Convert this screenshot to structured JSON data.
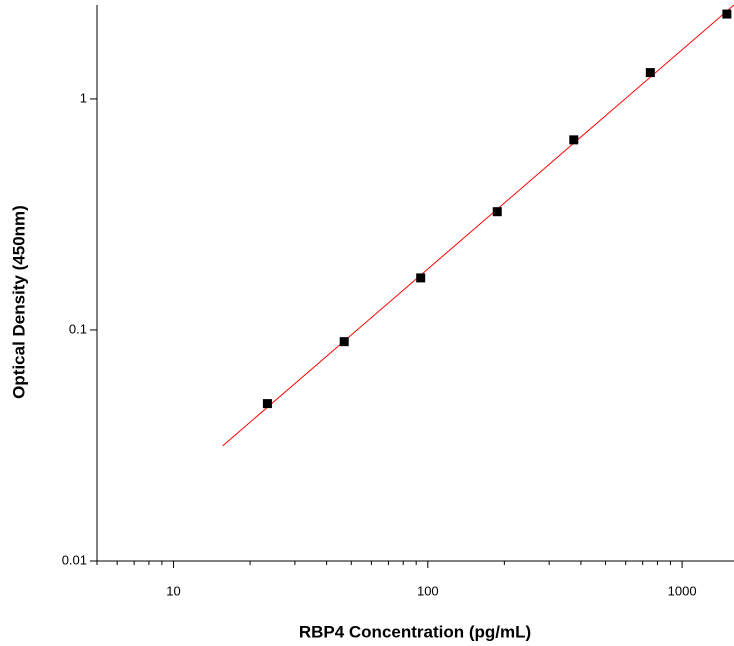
{
  "chart_data": {
    "type": "scatter",
    "x_label": "RBP4 Concentration (pg/mL)",
    "y_label": "Optical Density (450nm)",
    "x_scale": "log",
    "y_scale": "log",
    "xlim": [
      5,
      1600
    ],
    "ylim": [
      0.01,
      2.55
    ],
    "xticks": [
      10,
      100,
      1000
    ],
    "xminor_ticks": [
      5,
      6,
      7,
      8,
      9,
      20,
      30,
      40,
      50,
      60,
      70,
      80,
      90,
      200,
      300,
      400,
      500,
      600,
      700,
      800,
      900
    ],
    "yticks": [
      0.01,
      0.1,
      1
    ],
    "series": [
      {
        "marker": "square",
        "color": "#000000",
        "x": [
          23.4,
          46.9,
          93.75,
          187.5,
          375,
          750,
          1500
        ],
        "values": [
          0.048,
          0.089,
          0.168,
          0.325,
          0.665,
          1.3,
          2.33
        ]
      }
    ],
    "fit_line": {
      "color": "#ff0000",
      "x": [
        15.6,
        1600
      ],
      "values": [
        0.0315,
        2.55
      ]
    }
  }
}
